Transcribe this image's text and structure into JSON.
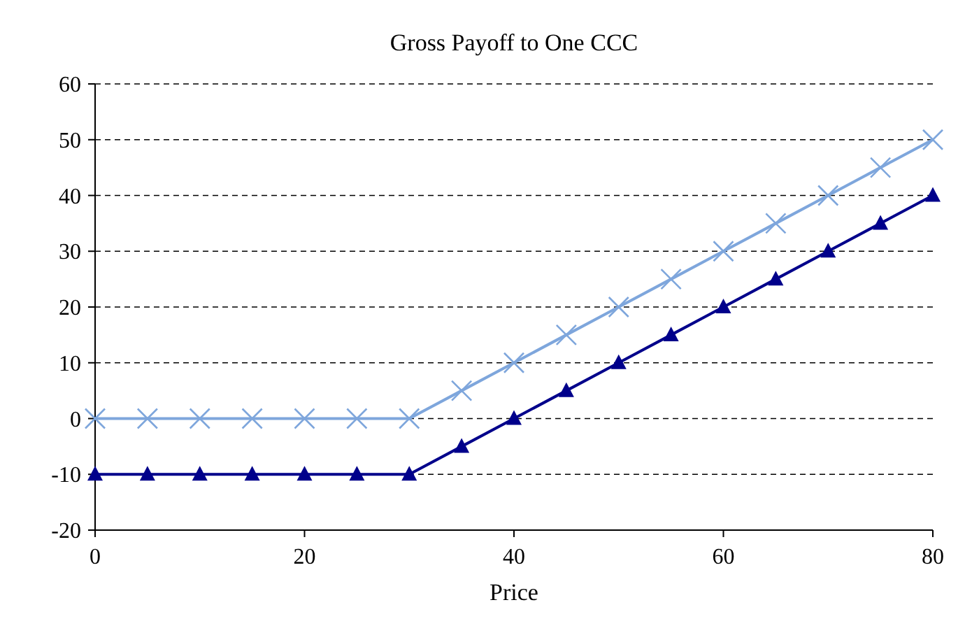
{
  "chart_data": {
    "type": "line",
    "title": "Gross Payoff to One CCC",
    "xlabel": "Price",
    "x": [
      0,
      5,
      10,
      15,
      20,
      25,
      30,
      35,
      40,
      45,
      50,
      55,
      60,
      65,
      70,
      75,
      80
    ],
    "series": [
      {
        "color": "#7ea6dc",
        "marker": "cross",
        "values": [
          0,
          0,
          0,
          0,
          0,
          0,
          0,
          5,
          10,
          15,
          20,
          25,
          30,
          35,
          40,
          45,
          50
        ]
      },
      {
        "color": "#00008b",
        "marker": "triangle",
        "values": [
          -10,
          -10,
          -10,
          -10,
          -10,
          -10,
          -10,
          -5,
          0,
          5,
          10,
          15,
          20,
          25,
          30,
          35,
          40
        ]
      }
    ],
    "xlim": [
      0,
      80
    ],
    "xticks": [
      0,
      20,
      40,
      60,
      80
    ],
    "ylim": [
      -20,
      60
    ],
    "yticks": [
      -20,
      -10,
      0,
      10,
      20,
      30,
      40,
      50,
      60
    ],
    "grid": "y"
  }
}
